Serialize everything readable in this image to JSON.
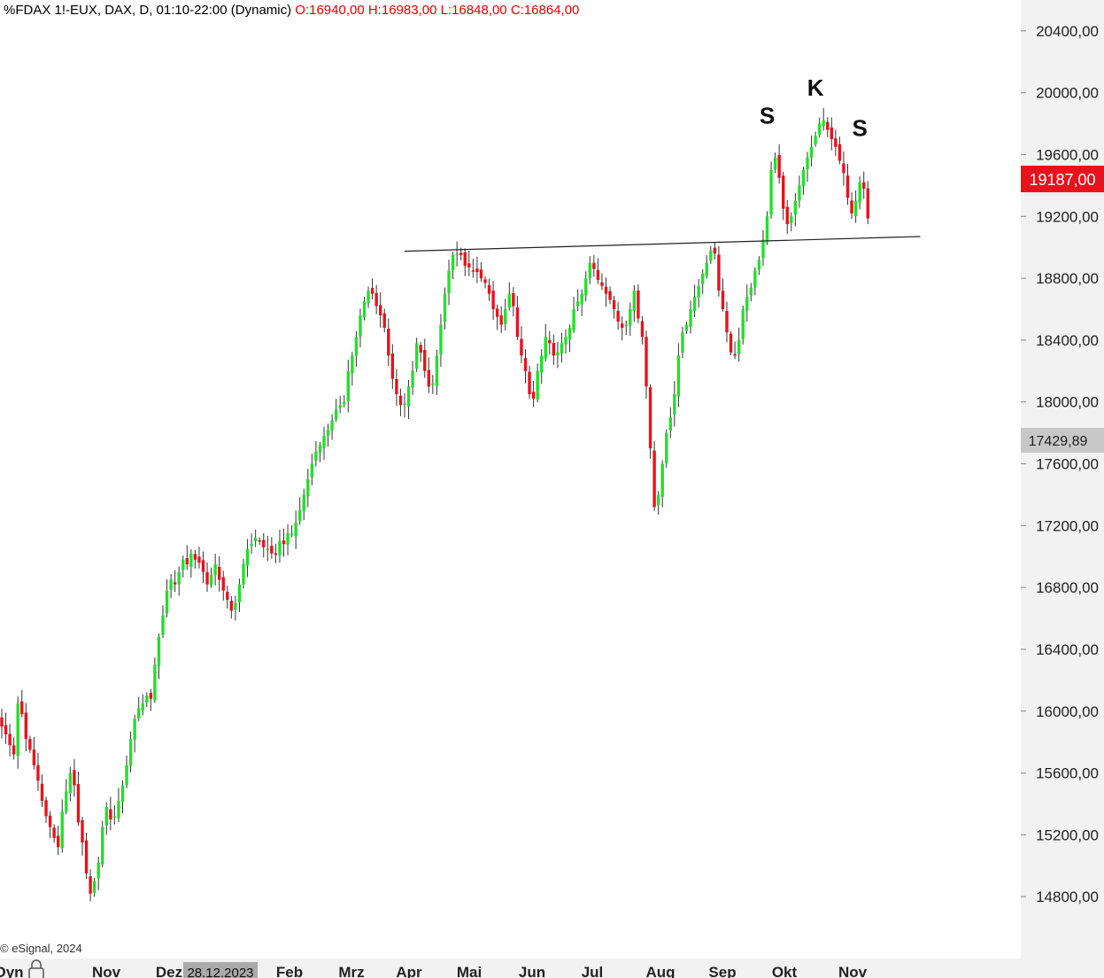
{
  "header": {
    "symbol": "%FDAX 1!-EUX, DAX, D, 01:10-22:00 (Dynamic)",
    "ohlc": "O:16940,00 H:16983,00 L:16848,00 C:16864,00"
  },
  "copyright": "© eSignal, 2024",
  "colors": {
    "up": "#22e02a",
    "down": "#e8121c",
    "wick": "#333333",
    "last_price_bg": "#e8121c",
    "ref_price_bg": "#c8c8c8",
    "axis_bg": "#f2f2f2"
  },
  "chart_data": {
    "type": "candlestick",
    "y_axis": {
      "min": 14400,
      "max": 20600,
      "ticks": [
        "20400,00",
        "20000,00",
        "19600,00",
        "19200,00",
        "18800,00",
        "18400,00",
        "18000,00",
        "17600,00",
        "17200,00",
        "16800,00",
        "16400,00",
        "16000,00",
        "15600,00",
        "15200,00",
        "14800,00"
      ]
    },
    "x_axis": {
      "labels": [
        "Nov",
        "28.12.2023",
        "Feb",
        "Mrz",
        "Apr",
        "Mai",
        "Jun",
        "Jul",
        "Aug",
        "Sep",
        "Okt",
        "Nov"
      ],
      "left_cut_label": "Oyn"
    },
    "last_price_label": "19187,00",
    "reference_price_label": "17429,89",
    "annotations": [
      {
        "text": "S",
        "date_index": 190,
        "price": 19800
      },
      {
        "text": "K",
        "date_index": 202,
        "price": 19980
      },
      {
        "text": "S",
        "date_index": 213,
        "price": 19720
      }
    ],
    "neckline": {
      "from": {
        "date_index": 100,
        "price": 18975
      },
      "to": {
        "date_index": 228,
        "price": 19070
      }
    },
    "closes": [
      15900,
      15850,
      15780,
      15720,
      16050,
      15980,
      15820,
      15750,
      15650,
      15550,
      15420,
      15320,
      15250,
      15180,
      15120,
      15350,
      15480,
      15600,
      15520,
      15280,
      15150,
      14950,
      14820,
      14900,
      15020,
      15250,
      15380,
      15300,
      15320,
      15420,
      15520,
      15650,
      15820,
      15950,
      16020,
      16050,
      16100,
      16080,
      16300,
      16480,
      16620,
      16780,
      16850,
      16820,
      16900,
      16980,
      16950,
      17020,
      16980,
      16960,
      16900,
      16820,
      16880,
      16950,
      16850,
      16780,
      16720,
      16650,
      16700,
      16820,
      16950,
      17050,
      17080,
      17120,
      17100,
      17060,
      17050,
      17020,
      17010,
      17100,
      17080,
      17150,
      17150,
      17220,
      17300,
      17400,
      17500,
      17600,
      17680,
      17720,
      17780,
      17820,
      17880,
      17950,
      17980,
      18000,
      18200,
      18300,
      18420,
      18560,
      18650,
      18720,
      18700,
      18620,
      18560,
      18480,
      18300,
      18150,
      18050,
      17980,
      17990,
      18100,
      18200,
      18380,
      18320,
      18200,
      18100,
      18120,
      18300,
      18500,
      18700,
      18850,
      18950,
      18960,
      18950,
      18880,
      18870,
      18850,
      18840,
      18800,
      18770,
      18700,
      18600,
      18550,
      18500,
      18600,
      18700,
      18620,
      18420,
      18300,
      18200,
      18050,
      18020,
      18200,
      18300,
      18420,
      18380,
      18300,
      18320,
      18380,
      18420,
      18480,
      18600,
      18650,
      18700,
      18800,
      18900,
      18860,
      18790,
      18750,
      18700,
      18660,
      18600,
      18520,
      18480,
      18500,
      18600,
      18720,
      18540,
      18420,
      18100,
      17700,
      17320,
      17400,
      17600,
      17800,
      17900,
      18050,
      18300,
      18450,
      18500,
      18600,
      18680,
      18750,
      18830,
      18900,
      18980,
      18960,
      18720,
      18600,
      18450,
      18320,
      18300,
      18400,
      18600,
      18680,
      18740,
      18850,
      18920,
      19050,
      19200,
      19500,
      19580,
      19450,
      19250,
      19150,
      19200,
      19300,
      19400,
      19500,
      19580,
      19650,
      19720,
      19800,
      19820,
      19760,
      19700,
      19650,
      19560,
      19480,
      19320,
      19220,
      19300,
      19420,
      19380,
      19187
    ]
  }
}
